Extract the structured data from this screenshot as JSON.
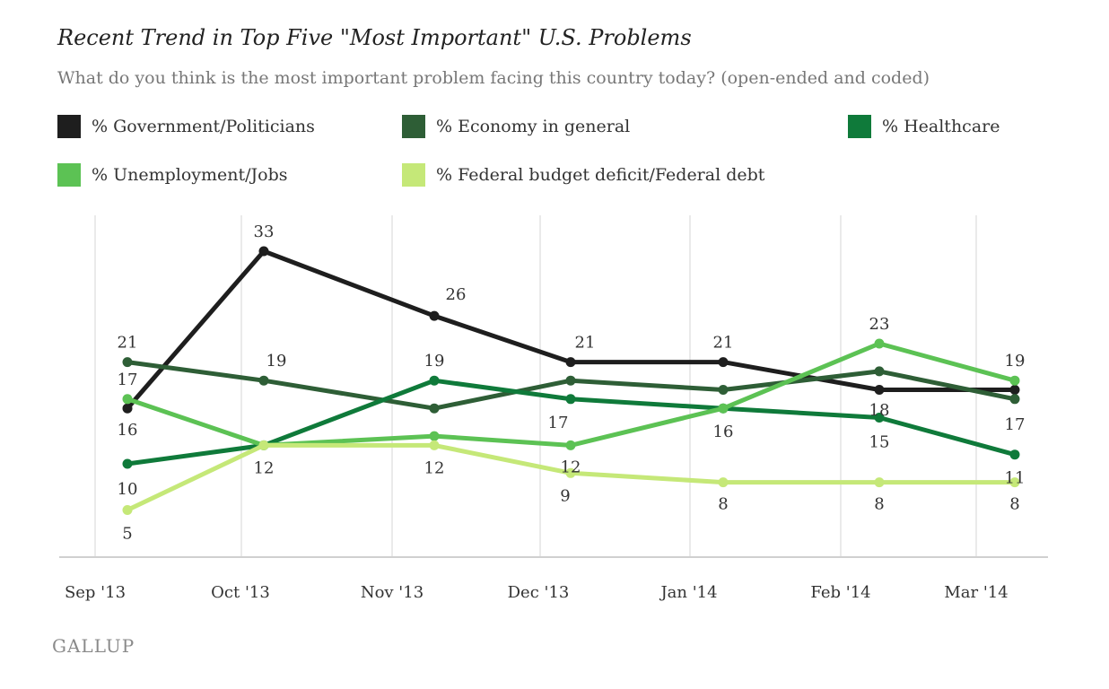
{
  "chart_data": {
    "type": "line",
    "title": "Recent Trend in Top Five \"Most Important\" U.S. Problems",
    "subtitle": "What do you think is the most important problem facing this country today? (open-ended and coded)",
    "categories": [
      "Sep '13",
      "Oct '13",
      "Nov '13",
      "Dec '13",
      "Jan '14",
      "Feb '14",
      "Mar '14"
    ],
    "ylim": [
      0,
      40
    ],
    "grid": "vertical",
    "legend_position": "top",
    "series": [
      {
        "name": "% Government/Politicians",
        "color": "#1e1e1e",
        "values": [
          16,
          33,
          26,
          21,
          21,
          18,
          18
        ],
        "labels": [
          "16",
          "33",
          "26",
          "21",
          "21",
          "",
          ""
        ]
      },
      {
        "name": "% Economy in general",
        "color": "#2e5e36",
        "values": [
          21,
          19,
          16,
          19,
          18,
          20,
          17
        ],
        "labels": [
          "21",
          "19",
          "",
          "",
          "",
          "",
          "17"
        ]
      },
      {
        "name": "% Healthcare",
        "color": "#0f7a3a",
        "values": [
          10,
          12,
          19,
          17,
          16,
          15,
          11
        ],
        "labels": [
          "10",
          "",
          "19",
          "17",
          "16",
          "15",
          "11"
        ]
      },
      {
        "name": "% Unemployment/Jobs",
        "color": "#5cc254",
        "values": [
          17,
          12,
          13,
          12,
          16,
          23,
          19
        ],
        "labels": [
          "17",
          "12",
          "",
          "12",
          "",
          "23",
          "19"
        ]
      },
      {
        "name": "% Federal budget deficit/Federal debt",
        "color": "#c5e878",
        "values": [
          5,
          12,
          12,
          9,
          8,
          8,
          8
        ],
        "labels": [
          "5",
          "",
          "12",
          "9",
          "8",
          "8",
          "8"
        ]
      }
    ],
    "extra_labels": [
      {
        "text": "18",
        "note": "Feb '14, between Government/Politicians and Economy in general"
      }
    ]
  },
  "brand": {
    "name": "GALLUP"
  }
}
